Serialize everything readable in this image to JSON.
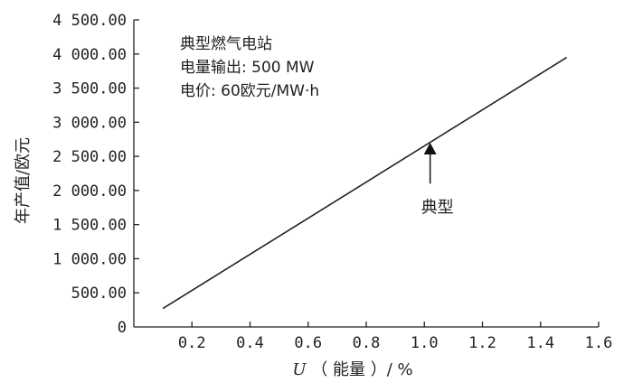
{
  "chart_data": {
    "type": "line",
    "xlabel": "能量",
    "xlabel_var": "U",
    "xlabel_unit": "%",
    "ylabel": "年产值/欧元",
    "xlim": [
      0,
      1.6
    ],
    "ylim": [
      0,
      4500
    ],
    "x_ticks": [
      0.2,
      0.4,
      0.6,
      0.8,
      1.0,
      1.2,
      1.4,
      1.6
    ],
    "x_tick_labels": [
      "0.2",
      "0.4",
      "0.6",
      "0.8",
      "1.0",
      "1.2",
      "1.4",
      "1.6"
    ],
    "y_ticks": [
      0,
      500,
      1000,
      1500,
      2000,
      2500,
      3000,
      3500,
      4000,
      4500
    ],
    "y_tick_labels": [
      "0",
      "500.00",
      "1 000.00",
      "1 500.00",
      "2 000.00",
      "2 500.00",
      "3 000.00",
      "3 500.00",
      "4 000.00",
      "4 500.00"
    ],
    "grid": false,
    "series": [
      {
        "x": [
          0.1,
          1.49
        ],
        "y": [
          270,
          3950
        ]
      }
    ],
    "annotation_lines": [
      "典型燃气电站",
      "电量输出: 500 MW",
      "电价: 60欧元/MW·h"
    ],
    "arrow": {
      "text": "典型",
      "x": 1.02,
      "y": 2700,
      "tail_y": 2100
    }
  }
}
